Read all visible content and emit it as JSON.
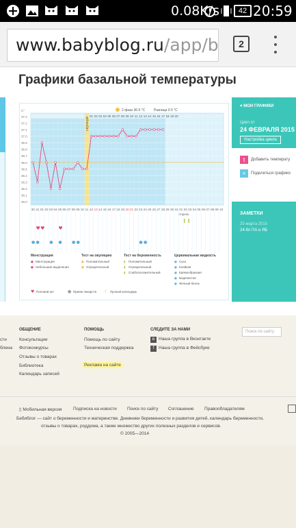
{
  "statusbar": {
    "speed": "0.08K/s",
    "time": "20:59",
    "battery": "42",
    "icons": [
      "plus-icon",
      "image-icon",
      "cat-icon",
      "cat-icon",
      "cat-icon",
      "alarm-icon",
      "vibrate-icon",
      "signal-icon"
    ]
  },
  "browser": {
    "url_host": "www.babyblog.ru",
    "url_path": "/app/basal",
    "tab_count": "2"
  },
  "page": {
    "title": "Графики базальной температуры",
    "chart": {
      "y_labels": [
        "C°",
        "37.3",
        "37.2",
        "37.1",
        "37.0",
        "36.9",
        "36.8",
        "36.7",
        "36.6",
        "36.5",
        "36.4",
        "36.3",
        "36.2",
        "36.1",
        "36.0"
      ],
      "header_note_1": "2 фаза 36.9 °C",
      "header_note_2": "Разница 0.5 °C",
      "ovulation_label": "овуляция",
      "top_days": [
        "01",
        "02",
        "03",
        "04",
        "05",
        "06",
        "07",
        "08",
        "09",
        "10",
        "11",
        "12",
        "13",
        "14",
        "15",
        "16",
        "17",
        "18",
        "19",
        "20"
      ],
      "bottom_days": [
        "30",
        "31",
        "01",
        "02",
        "03",
        "04",
        "05",
        "06",
        "07",
        "08",
        "09",
        "10",
        "11",
        "12",
        "13",
        "14",
        "15",
        "16",
        "17",
        "18",
        "19",
        "20",
        "21",
        "22",
        "23",
        "24",
        "25",
        "26",
        "27",
        "28",
        "29",
        "30",
        "31",
        "01",
        "02",
        "03",
        "04",
        "05",
        "06",
        "07",
        "08",
        "09",
        "10"
      ],
      "april_label": "Апрель",
      "temperatures": [
        36.6,
        36.3,
        36.9,
        36.6,
        36.2,
        36.6,
        36.2,
        36.5,
        36.5,
        36.5,
        36.6,
        36.5,
        36.5,
        37.0,
        37.0,
        37.0,
        37.0,
        37.0,
        37.0,
        37.0,
        37.1,
        37.0,
        37.0,
        37.0,
        37.1,
        37.1,
        37.1,
        37.1,
        37.1,
        37.1
      ]
    },
    "legend": {
      "menstruation": {
        "title": "Менструация",
        "items": [
          "Менструация",
          "Небольшие выделения"
        ]
      },
      "ovulation_test": {
        "title": "Тест на овуляцию",
        "items": [
          "Положительный",
          "Отрицательный"
        ]
      },
      "pregnancy_test": {
        "title": "Тест на беременность",
        "items": [
          "Положительный",
          "Отрицательный",
          "Слабоположительный"
        ]
      },
      "cervical_fluid": {
        "title": "Цервикальная жидкость",
        "items": [
          "Сухо",
          "Клейкая",
          "Кремообразная",
          "Водянистая",
          "Яичный белок"
        ]
      },
      "bottom": [
        "Половой акт",
        "Прием лекарств",
        "Лунный календарь"
      ]
    },
    "side": {
      "my_charts": "МОИ ГРАФИКИ",
      "cycle_label": "Цикл от",
      "cycle_date": "24 ФЕВРАЛЯ 2015",
      "cycle_settings": "Настройка цикла",
      "add_temp": "Добавить температу",
      "share_chart": "Поделиться графико",
      "notes_title": "ЗАМЕТКИ",
      "note_date": "25 марта 2015",
      "note_text": "24-бп ПА и ЯБ"
    }
  },
  "footer": {
    "left_partial": [
      "сти",
      "блена"
    ],
    "col1": {
      "title": "ОБЩЕНИЕ",
      "links": [
        "Консультации",
        "Фотоконкурсы",
        "Отзывы о товарах",
        "Библиотека",
        "Календарь записей"
      ]
    },
    "col2": {
      "title": "ПОМОЩЬ",
      "links": [
        "Помощь по сайту",
        "Техническая поддержка",
        "Реклама на сайте"
      ]
    },
    "col3": {
      "title": "СЛЕДИТЕ ЗА НАМИ",
      "links": [
        "Наша группа в Вконтакте",
        "Наша группа в Фейсбуке"
      ]
    },
    "search_placeholder": "Поиск по сайту",
    "bottom_links": [
      "Мобильная версия",
      "Подписка на новости",
      "Поиск по сайту",
      "Соглашение",
      "Правообладателям"
    ],
    "about": "Бебиблог — сайт о беременности и материнстве. Дневники беременности и развития детей, календарь беременности,",
    "about2": "отзывы о товарах, роддома, а также множество других полезных разделов и сервисов.",
    "copyright": "© 2005—2014"
  }
}
